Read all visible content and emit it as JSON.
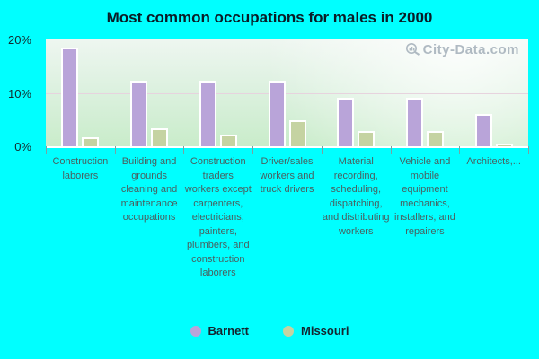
{
  "title": "Most common occupations for males in 2000",
  "watermark": "City-Data.com",
  "colors": {
    "background": "#00ffff",
    "barnett": "#b9a4d9",
    "missouri": "#c5d3a2",
    "title_text": "#0a1c26",
    "axis_label_text": "#4a5f5f",
    "watermark_text": "#a8b3bd",
    "gridline": "#e7d3de"
  },
  "y_axis": {
    "tick_labels": [
      "20%",
      "10%",
      "0%"
    ],
    "tick_values": [
      20,
      10,
      0
    ]
  },
  "chart_data": {
    "type": "bar",
    "title": "Most common occupations for males in 2000",
    "categories": [
      "Construction laborers",
      "Building and grounds cleaning and maintenance occupations",
      "Construction traders workers except carpenters, electricians, painters, plumbers, and construction laborers",
      "Driver/sales workers and truck drivers",
      "Material recording, scheduling, dispatching, and distributing workers",
      "Vehicle and mobile equipment mechanics, installers, and repairers",
      "Architects,..."
    ],
    "series": [
      {
        "name": "Barnett",
        "color": "#b9a4d9",
        "values": [
          18.5,
          12.2,
          12.2,
          12.2,
          9.1,
          9.1,
          6.1
        ]
      },
      {
        "name": "Missouri",
        "color": "#c5d3a2",
        "values": [
          1.6,
          3.4,
          2.2,
          4.9,
          2.9,
          2.9,
          0.3
        ]
      }
    ],
    "xlabel": "",
    "ylabel": "",
    "ylim": [
      0,
      20
    ],
    "grid": "horizontal-faint",
    "legend_position": "bottom"
  },
  "legend": {
    "items": [
      {
        "label": "Barnett",
        "color": "#b9a4d9"
      },
      {
        "label": "Missouri",
        "color": "#c5d3a2"
      }
    ]
  }
}
